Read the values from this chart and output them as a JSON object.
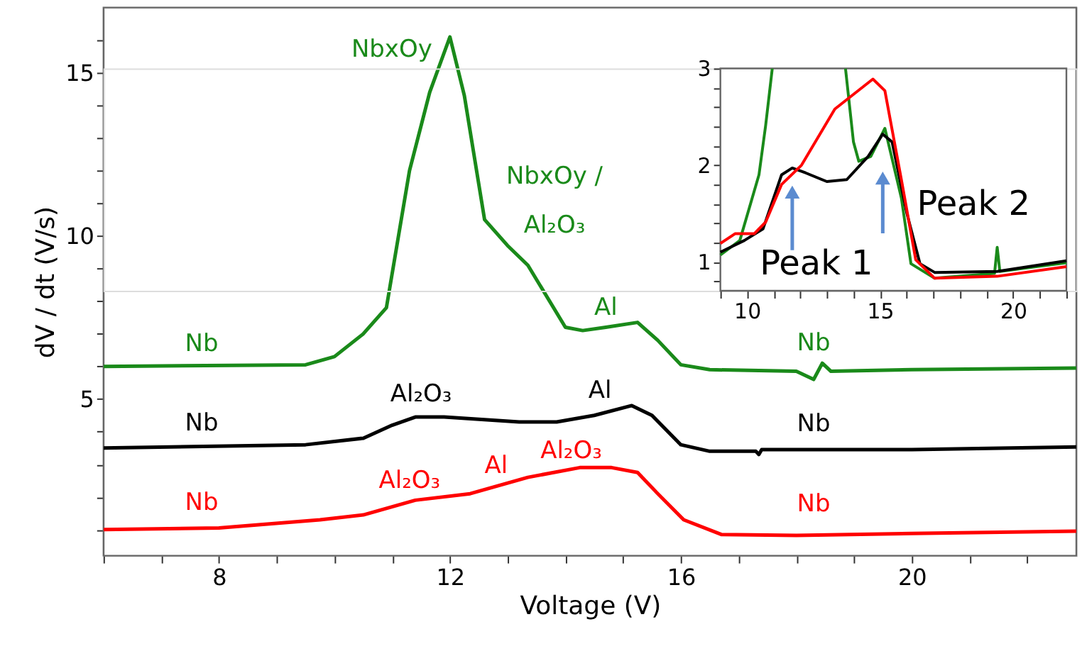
{
  "chart_data": [
    {
      "type": "line",
      "xlabel": "Voltage (V)",
      "ylabel": "dV / dt (V/s)",
      "xlim": [
        6,
        22.85
      ],
      "ylim": [
        0.2,
        17
      ],
      "grid": false,
      "legend": false,
      "xticks": [
        {
          "value": 6,
          "label": null
        },
        {
          "value": 7,
          "label": null
        },
        8,
        {
          "value": 9,
          "label": null
        },
        {
          "value": 10,
          "label": null
        },
        {
          "value": 11,
          "label": null
        },
        12,
        {
          "value": 13,
          "label": null
        },
        {
          "value": 14,
          "label": null
        },
        {
          "value": 15,
          "label": null
        },
        16,
        {
          "value": 17,
          "label": null
        },
        {
          "value": 18,
          "label": null
        },
        {
          "value": 19,
          "label": null
        },
        20,
        {
          "value": 21,
          "label": null
        },
        {
          "value": 22,
          "label": null
        }
      ],
      "yticks": [
        {
          "value": 1,
          "label": null
        },
        {
          "value": 2,
          "label": null
        },
        {
          "value": 3,
          "label": null
        },
        {
          "value": 4,
          "label": null
        },
        5,
        {
          "value": 6,
          "label": null
        },
        {
          "value": 7,
          "label": null
        },
        {
          "value": 8,
          "label": null
        },
        {
          "value": 9,
          "label": null
        },
        10,
        {
          "value": 11,
          "label": null
        },
        {
          "value": 12,
          "label": null
        },
        {
          "value": 13,
          "label": null
        },
        {
          "value": 14,
          "label": null
        },
        15,
        {
          "value": 16,
          "label": null
        }
      ],
      "series": [
        {
          "color": "#1a8a1a",
          "x": [
            6,
            9.5,
            10.0,
            10.5,
            10.9,
            11.3,
            11.65,
            12.0,
            12.25,
            12.6,
            13.0,
            13.35,
            14.0,
            14.3,
            14.7,
            15.25,
            15.6,
            16.0,
            16.5,
            18.0,
            18.3,
            18.45,
            18.6,
            20.0,
            22.85
          ],
          "values": [
            6.0,
            6.05,
            6.3,
            7.0,
            7.8,
            12.0,
            14.4,
            16.1,
            14.3,
            10.5,
            9.7,
            9.1,
            7.2,
            7.1,
            7.2,
            7.35,
            6.8,
            6.05,
            5.9,
            5.85,
            5.6,
            6.1,
            5.85,
            5.9,
            5.95
          ]
        },
        {
          "color": "#000000",
          "x": [
            6,
            9.5,
            10.5,
            11.0,
            11.4,
            11.9,
            13.2,
            13.85,
            14.5,
            15.15,
            15.5,
            16.0,
            16.5,
            17.3,
            17.35,
            17.4,
            20.0,
            22.85
          ],
          "values": [
            3.5,
            3.6,
            3.8,
            4.2,
            4.45,
            4.45,
            4.3,
            4.3,
            4.5,
            4.8,
            4.5,
            3.6,
            3.4,
            3.4,
            3.3,
            3.45,
            3.45,
            3.53
          ]
        },
        {
          "color": "#ff0000",
          "x": [
            6,
            8.0,
            9.75,
            10.5,
            11.4,
            12.35,
            13.35,
            14.25,
            14.8,
            15.25,
            15.6,
            16.05,
            16.7,
            18.0,
            20.0,
            22.85
          ],
          "values": [
            1.0,
            1.05,
            1.3,
            1.45,
            1.9,
            2.1,
            2.6,
            2.9,
            2.9,
            2.75,
            2.1,
            1.3,
            0.85,
            0.82,
            0.88,
            0.95
          ]
        }
      ],
      "annotations": [
        {
          "text": "Nb",
          "x": 7.7,
          "y": 6.0
        },
        {
          "text": "NbxOy",
          "x": 12.0,
          "y": 16.1
        },
        {
          "text": "NbxOy /",
          "x": 13.0,
          "y": 9.7
        },
        {
          "text": "Al₂O₃",
          "x": 13.0,
          "y": 9.7
        },
        {
          "text": "Al",
          "x": 14.7,
          "y": 7.2
        },
        {
          "text": "Nb",
          "x": 18.3,
          "y": 5.85
        },
        {
          "text": "Nb",
          "x": 7.7,
          "y": 3.55
        },
        {
          "text": "Al₂O₃",
          "x": 11.5,
          "y": 4.45
        },
        {
          "text": "Al",
          "x": 14.6,
          "y": 4.55
        },
        {
          "text": "Nb",
          "x": 18.3,
          "y": 3.45
        },
        {
          "text": "Nb",
          "x": 7.7,
          "y": 1.04
        },
        {
          "text": "Al₂O₃",
          "x": 11.3,
          "y": 1.85
        },
        {
          "text": "Al",
          "x": 12.8,
          "y": 2.3
        },
        {
          "text": "Al₂O₃",
          "x": 14.1,
          "y": 2.85
        },
        {
          "text": "Nb",
          "x": 18.3,
          "y": 0.82
        }
      ]
    },
    {
      "type": "line",
      "xlim": [
        9,
        22
      ],
      "ylim": [
        0.7,
        3
      ],
      "grid": false,
      "legend": false,
      "xticks": [
        {
          "value": 9,
          "label": null
        },
        10,
        {
          "value": 11,
          "label": null
        },
        {
          "value": 12,
          "label": null
        },
        {
          "value": 13,
          "label": null
        },
        {
          "value": 14,
          "label": null
        },
        15,
        {
          "value": 16,
          "label": null
        },
        {
          "value": 17,
          "label": null
        },
        {
          "value": 18,
          "label": null
        },
        {
          "value": 19,
          "label": null
        },
        20,
        {
          "value": 21,
          "label": null
        },
        {
          "value": 22,
          "label": null
        }
      ],
      "yticks": [
        {
          "value": 0.8,
          "label": null
        },
        1,
        {
          "value": 1.2,
          "label": null
        },
        {
          "value": 1.4,
          "label": null
        },
        {
          "value": 1.6,
          "label": null
        },
        {
          "value": 1.8,
          "label": null
        },
        2,
        {
          "value": 2.2,
          "label": null
        },
        {
          "value": 2.4,
          "label": null
        },
        {
          "value": 2.6,
          "label": null
        },
        {
          "value": 2.8,
          "label": null
        },
        3
      ],
      "series": [
        {
          "color": "#1a8a1a",
          "x": [
            9.0,
            9.73,
            10.45,
            10.7,
            10.95,
            12.3,
            13.7,
            14.0,
            14.2,
            14.65,
            15.18,
            15.8,
            16.16,
            17.05,
            19.3,
            19.4,
            19.5,
            22.0
          ],
          "values": [
            1.07,
            1.22,
            1.9,
            2.41,
            3.0,
            null,
            3.0,
            2.24,
            2.04,
            2.09,
            2.38,
            1.66,
            0.98,
            0.83,
            0.88,
            1.15,
            0.9,
            0.99
          ]
        },
        {
          "color": "#000000",
          "x": [
            9.0,
            9.9,
            10.6,
            11.3,
            11.7,
            12.2,
            13.0,
            13.75,
            14.55,
            15.1,
            15.45,
            16.0,
            16.5,
            17.05,
            19.4,
            22.0
          ],
          "values": [
            1.1,
            1.22,
            1.34,
            1.9,
            1.97,
            1.92,
            1.83,
            1.85,
            2.09,
            2.32,
            2.24,
            1.51,
            0.98,
            0.89,
            0.9,
            1.01
          ]
        },
        {
          "color": "#ff0000",
          "x": [
            9.0,
            9.55,
            10.27,
            10.7,
            11.3,
            12.05,
            13.3,
            14.73,
            15.18,
            15.8,
            16.34,
            17.05,
            19.4,
            22.0
          ],
          "values": [
            1.19,
            1.29,
            1.29,
            1.41,
            1.8,
            2.0,
            2.58,
            2.89,
            2.77,
            1.85,
            1.02,
            0.83,
            0.85,
            0.95
          ]
        }
      ],
      "annotations": [
        {
          "text": "Peak 1",
          "x": 11.7,
          "y": 1.97
        },
        {
          "text": "Peak 2",
          "x": 15.1,
          "y": 2.32
        }
      ]
    }
  ]
}
